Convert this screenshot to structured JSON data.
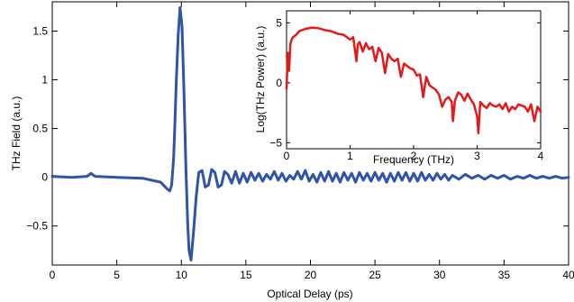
{
  "chart_data": [
    {
      "type": "line",
      "xlabel": "Optical Delay (ps)",
      "ylabel": "THz Field (a.u.)",
      "xlim": [
        0,
        40
      ],
      "ylim": [
        -0.9,
        1.8
      ],
      "x_ticks": [
        0,
        5,
        10,
        15,
        20,
        25,
        30,
        35,
        40
      ],
      "x_tick_labels": [
        "0",
        "5",
        "10",
        "15",
        "20",
        "25",
        "30",
        "35",
        "40"
      ],
      "y_ticks": [
        1.5,
        1,
        0.5,
        0,
        -0.5
      ],
      "y_tick_labels": [
        "1.5",
        "1",
        "0.5",
        "0",
        "−0.5"
      ],
      "grid": false,
      "series": [
        {
          "color": "#2f55a4",
          "x": [
            0,
            1.5,
            2.7,
            3.0,
            3.3,
            5,
            7,
            8.4,
            8.9,
            9.1,
            9.25,
            9.4,
            9.5,
            9.6,
            9.75,
            9.9,
            10.05,
            10.2,
            10.35,
            10.5,
            10.6,
            10.75,
            10.95,
            11.15,
            11.35,
            11.6,
            11.85,
            12.1,
            12.35,
            12.6,
            12.85,
            13.1,
            13.35,
            13.6,
            13.9,
            14.2,
            14.5,
            14.8,
            15.1,
            15.4,
            15.7,
            16.0,
            16.3,
            16.6,
            16.9,
            17.2,
            17.5,
            17.8,
            18.1,
            18.4,
            18.7,
            19.0,
            19.3,
            19.6,
            19.9,
            20.2,
            20.5,
            20.8,
            21.1,
            21.4,
            21.7,
            22.0,
            22.3,
            22.6,
            22.9,
            23.2,
            23.5,
            23.8,
            24.1,
            24.4,
            24.7,
            25.0,
            25.3,
            25.6,
            25.9,
            26.2,
            26.5,
            26.8,
            27.1,
            27.4,
            27.7,
            28.0,
            28.3,
            28.6,
            28.9,
            29.2,
            29.5,
            29.8,
            30.1,
            30.4,
            30.7,
            31.0,
            31.5,
            32.0,
            32.5,
            33.0,
            33.5,
            34.0,
            34.5,
            35.0,
            35.5,
            36.0,
            36.5,
            37.0,
            37.5,
            38.0,
            38.5,
            39.0,
            39.5,
            40.0
          ],
          "y": [
            0.01,
            0.0,
            0.01,
            0.04,
            0.01,
            0.0,
            -0.01,
            -0.05,
            -0.12,
            -0.14,
            -0.08,
            0.2,
            0.55,
            0.95,
            1.45,
            1.74,
            1.55,
            0.9,
            0.1,
            -0.5,
            -0.75,
            -0.85,
            -0.55,
            -0.2,
            0.05,
            0.07,
            -0.1,
            -0.08,
            0.08,
            0.05,
            -0.1,
            -0.08,
            0.06,
            0.03,
            -0.06,
            0.06,
            -0.06,
            0.04,
            -0.05,
            0.05,
            -0.03,
            0.04,
            -0.04,
            0.03,
            -0.02,
            0.06,
            -0.03,
            0.04,
            -0.04,
            0.02,
            -0.02,
            0.06,
            -0.02,
            0.07,
            -0.04,
            0.03,
            -0.05,
            0.05,
            -0.04,
            0.06,
            -0.04,
            0.04,
            -0.05,
            0.05,
            -0.03,
            0.04,
            -0.05,
            0.05,
            -0.03,
            0.04,
            -0.04,
            0.05,
            -0.03,
            0.04,
            -0.05,
            0.04,
            -0.04,
            0.05,
            -0.03,
            0.05,
            -0.04,
            0.04,
            -0.04,
            0.05,
            -0.03,
            0.03,
            -0.03,
            0.04,
            -0.02,
            0.03,
            -0.03,
            0.02,
            -0.02,
            0.03,
            -0.01,
            0.02,
            -0.02,
            0.02,
            -0.01,
            0.02,
            -0.02,
            0.01,
            -0.01,
            0.02,
            -0.01,
            0.01,
            -0.01,
            0.01,
            -0.01,
            0.0
          ]
        }
      ]
    },
    {
      "type": "line",
      "xlabel": "Frequency (THz)",
      "ylabel": "Log(THz Power) (a.u.)",
      "xlim": [
        0,
        4
      ],
      "ylim": [
        -5.5,
        6
      ],
      "x_ticks": [
        0,
        1,
        2,
        3,
        4
      ],
      "x_tick_labels": [
        "0",
        "1",
        "2",
        "3",
        "4"
      ],
      "y_ticks": [
        5,
        0,
        -5
      ],
      "y_tick_labels": [
        "5",
        "0",
        "−5"
      ],
      "grid": false,
      "series": [
        {
          "color": "#e31a1c",
          "x": [
            0,
            0.02,
            0.04,
            0.06,
            0.08,
            0.1,
            0.15,
            0.2,
            0.3,
            0.4,
            0.5,
            0.6,
            0.7,
            0.8,
            0.9,
            1.0,
            1.05,
            1.1,
            1.12,
            1.15,
            1.2,
            1.25,
            1.3,
            1.35,
            1.4,
            1.45,
            1.5,
            1.55,
            1.6,
            1.65,
            1.7,
            1.75,
            1.8,
            1.85,
            1.9,
            1.95,
            2.0,
            2.05,
            2.1,
            2.15,
            2.2,
            2.25,
            2.3,
            2.35,
            2.4,
            2.45,
            2.5,
            2.55,
            2.6,
            2.62,
            2.65,
            2.7,
            2.75,
            2.8,
            2.85,
            2.9,
            2.95,
            3.0,
            3.02,
            3.05,
            3.1,
            3.15,
            3.2,
            3.25,
            3.3,
            3.35,
            3.4,
            3.45,
            3.5,
            3.55,
            3.6,
            3.65,
            3.7,
            3.75,
            3.8,
            3.85,
            3.9,
            3.95,
            4.0
          ],
          "y": [
            -0.5,
            2.5,
            1.0,
            3.2,
            3.6,
            3.8,
            4.0,
            4.3,
            4.5,
            4.6,
            4.55,
            4.4,
            4.3,
            4.1,
            4.0,
            3.6,
            3.8,
            1.8,
            3.2,
            3.4,
            2.6,
            3.3,
            2.8,
            3.0,
            1.8,
            2.9,
            2.5,
            0.8,
            2.4,
            2.0,
            1.8,
            2.0,
            0.5,
            1.6,
            1.4,
            1.2,
            1.1,
            0.6,
            0.7,
            -1.2,
            0.5,
            -0.2,
            -0.4,
            -0.6,
            -1.0,
            -2.0,
            -1.4,
            -1.2,
            -1.6,
            -3.2,
            -1.5,
            -0.8,
            -1.0,
            -1.5,
            -0.9,
            -1.4,
            -1.8,
            -2.8,
            -4.2,
            -1.6,
            -1.9,
            -2.1,
            -1.7,
            -1.9,
            -2.0,
            -1.8,
            -2.2,
            -1.7,
            -2.4,
            -2.0,
            -2.2,
            -1.8,
            -1.9,
            -2.0,
            -2.4,
            -1.8,
            -3.2,
            -2.0,
            -2.4
          ]
        }
      ]
    }
  ]
}
